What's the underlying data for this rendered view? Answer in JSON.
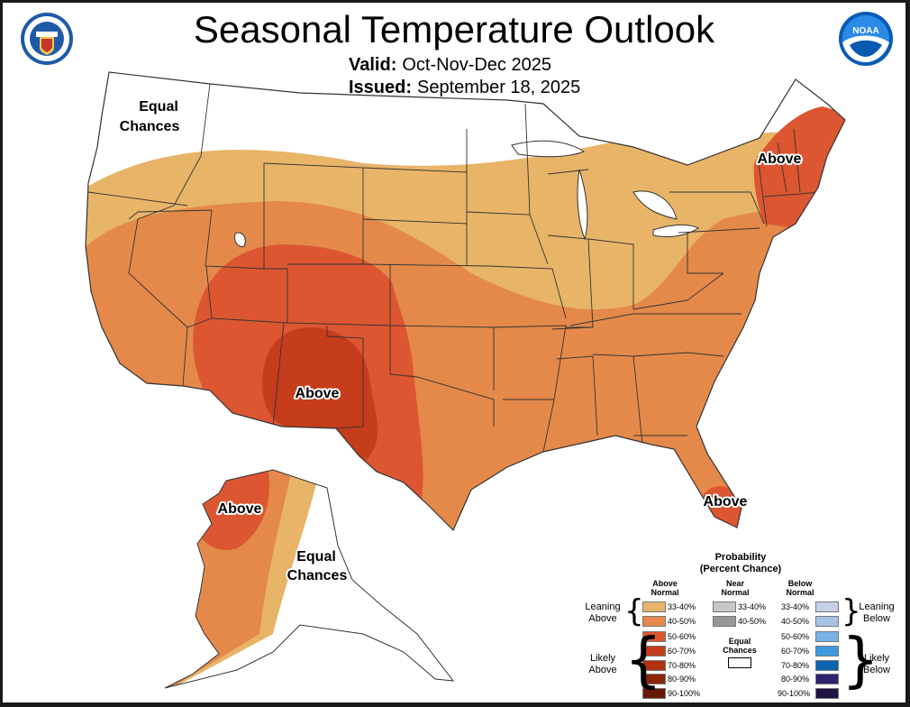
{
  "title": "Seasonal Temperature Outlook",
  "valid_label": "Valid:",
  "valid_value": "Oct-Nov-Dec 2025",
  "issued_label": "Issued:",
  "issued_value": "September 18, 2025",
  "logos": {
    "left": "department-of-commerce-seal",
    "right": "noaa-logo"
  },
  "map_labels": {
    "equal_chances_northwest": [
      "Equal",
      "Chances"
    ],
    "above_southwest": "Above",
    "above_northeast": "Above",
    "above_florida": "Above",
    "above_alaska": "Above",
    "equal_chances_alaska": [
      "Equal",
      "Chances"
    ]
  },
  "colors": {
    "above_33_40": "#e8b468",
    "above_40_50": "#e4894a",
    "above_50_60": "#dc5632",
    "above_60_70": "#c63d1c",
    "above_70_80": "#b2310f",
    "above_80_90": "#8b2508",
    "above_90_100": "#6a1803",
    "near_33_40": "#c8c8c8",
    "near_40_50": "#979797",
    "below_33_40": "#c5d0e8",
    "below_40_50": "#a6c3e6",
    "below_50_60": "#78b1e3",
    "below_60_70": "#3d9ae0",
    "below_70_80": "#0b62ae",
    "below_80_90": "#2f216d",
    "below_90_100": "#1f1345",
    "equal_chances": "#ffffff",
    "state_lines": "#333333"
  },
  "legend": {
    "title_line1": "Probability",
    "title_line2": "(Percent Chance)",
    "above_header": [
      "Above",
      "Normal"
    ],
    "near_header": [
      "Near",
      "Normal"
    ],
    "below_header": [
      "Below",
      "Normal"
    ],
    "above_ranges": [
      "33-40%",
      "40-50%",
      "50-60%",
      "60-70%",
      "70-80%",
      "80-90%",
      "90-100%"
    ],
    "near_ranges": [
      "33-40%",
      "40-50%"
    ],
    "below_ranges": [
      "33-40%",
      "40-50%",
      "50-60%",
      "60-70%",
      "70-80%",
      "80-90%",
      "90-100%"
    ],
    "equal_chances": [
      "Equal",
      "Chances"
    ],
    "leaning_above": [
      "Leaning",
      "Above"
    ],
    "likely_above": [
      "Likely",
      "Above"
    ],
    "leaning_below": [
      "Leaning",
      "Below"
    ],
    "likely_below": [
      "Likely",
      "Below"
    ]
  }
}
